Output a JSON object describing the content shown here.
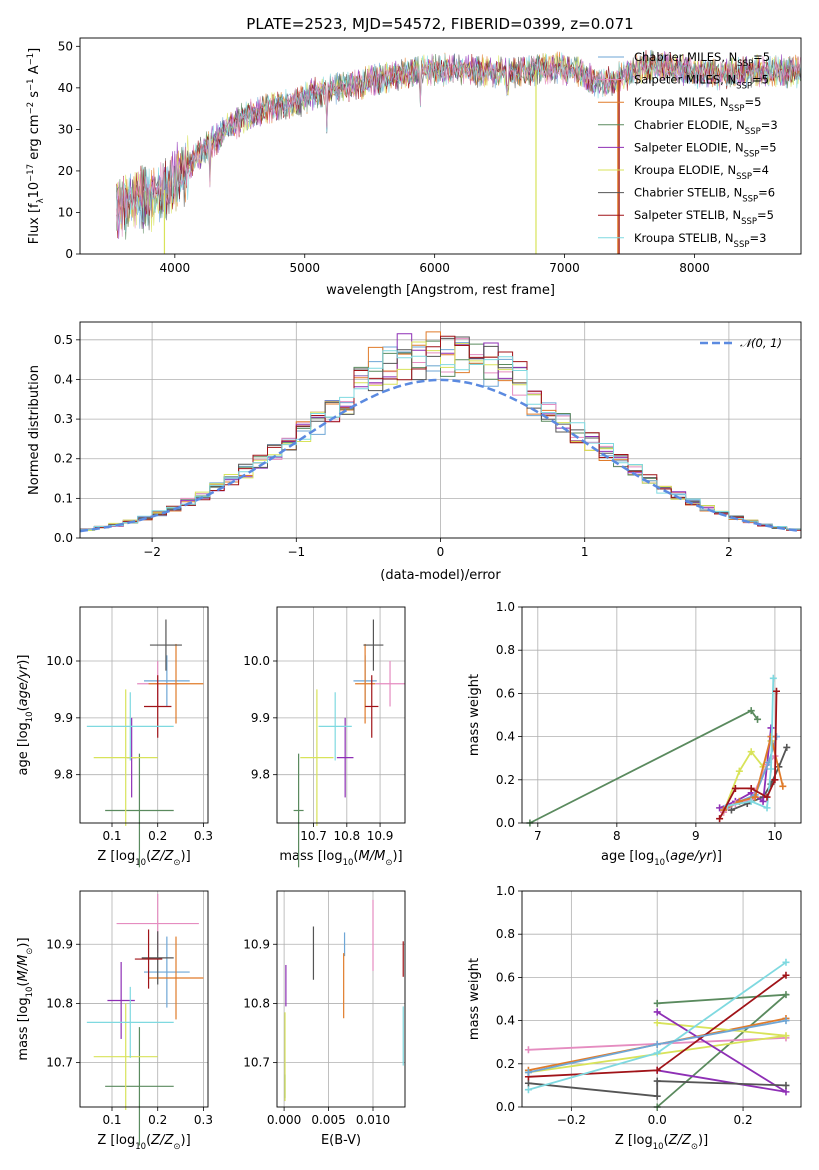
{
  "figure": {
    "title": "PLATE=2523, MJD=54572, FIBERID=0399, z=0.071"
  },
  "colors": {
    "Chabrier MILES": "#6ea6d6",
    "Salpeter MILES": "#e58cc0",
    "Kroupa MILES": "#e07b2a",
    "Chabrier ELODIE": "#5a8a5e",
    "Salpeter ELODIE": "#8e2fb5",
    "Kroupa ELODIE": "#d8e35a",
    "Chabrier STELIB": "#555555",
    "Salpeter STELIB": "#a01318",
    "Kroupa STELIB": "#7fd9e0",
    "normal_curve": "#5b8ae0"
  },
  "chart_data": [
    {
      "id": "spectrum",
      "type": "line",
      "xlabel": "wavelength [Angstrom, rest frame]",
      "ylabel": "Flux [fλ10⁻¹⁷ erg cm⁻² s⁻¹ A⁻¹]",
      "xlim": [
        3270,
        8820
      ],
      "ylim": [
        0,
        52
      ],
      "xticks": [
        "4000",
        "5000",
        "6000",
        "7000",
        "8000"
      ],
      "yticks": [
        "0",
        "10",
        "20",
        "30",
        "40",
        "50"
      ],
      "continuum": {
        "x": [
          3550,
          3700,
          3850,
          3950,
          4100,
          4250,
          4400,
          4550,
          4700,
          4900,
          5100,
          5300,
          5500,
          5700,
          5900,
          6100,
          6300,
          6500,
          6700,
          6900,
          7100,
          7200,
          7300,
          7400,
          7600,
          7800,
          8000,
          8200,
          8400,
          8600,
          8800
        ],
        "y": [
          11,
          13,
          14,
          16,
          21,
          26,
          30,
          33,
          35,
          36,
          39,
          40,
          41.5,
          43,
          44,
          44.5,
          44,
          44,
          44,
          45,
          44,
          42,
          41,
          42,
          45,
          45,
          44,
          43,
          44,
          44,
          44
        ]
      },
      "dips": [
        {
          "x": 3920,
          "y": 0,
          "series": "Kroupa ELODIE"
        },
        {
          "x": 4270,
          "y": 16
        },
        {
          "x": 5170,
          "y": 29
        },
        {
          "x": 5890,
          "y": 35
        },
        {
          "x": 6560,
          "y": 38
        },
        {
          "x": 6780,
          "y": 0,
          "series": "Kroupa ELODIE"
        },
        {
          "x": 7420,
          "y": 0,
          "series": "Salpeter STELIB"
        },
        {
          "x": 7410,
          "y": 0,
          "series": "Kroupa MILES"
        }
      ],
      "legend": [
        {
          "label": "Chabrier MILES, N",
          "sub": "SSP",
          "suffix": "=5"
        },
        {
          "label": "Salpeter MILES, N",
          "sub": "SSP",
          "suffix": "=5"
        },
        {
          "label": "Kroupa MILES, N",
          "sub": "SSP",
          "suffix": "=5"
        },
        {
          "label": "Chabrier ELODIE, N",
          "sub": "SSP",
          "suffix": "=3"
        },
        {
          "label": "Salpeter ELODIE, N",
          "sub": "SSP",
          "suffix": "=5"
        },
        {
          "label": "Kroupa ELODIE, N",
          "sub": "SSP",
          "suffix": "=4"
        },
        {
          "label": "Chabrier STELIB, N",
          "sub": "SSP",
          "suffix": "=6"
        },
        {
          "label": "Salpeter STELIB, N",
          "sub": "SSP",
          "suffix": "=5"
        },
        {
          "label": "Kroupa STELIB, N",
          "sub": "SSP",
          "suffix": "=3"
        }
      ],
      "legend_position": "upper-right"
    },
    {
      "id": "residuals",
      "type": "histogram",
      "xlabel": "(data-model)/error",
      "ylabel": "Normed distribution",
      "xlim": [
        -2.5,
        2.5
      ],
      "ylim": [
        0,
        0.545
      ],
      "xticks": [
        "−2",
        "−1",
        "0",
        "1",
        "2"
      ],
      "yticks": [
        "0.0",
        "0.1",
        "0.2",
        "0.3",
        "0.4",
        "0.5"
      ],
      "grid": true,
      "bin_width": 0.1,
      "normal_label": "𝒩(0, 1)",
      "legend_position": "upper-right"
    },
    {
      "id": "age_vs_Z",
      "type": "errorbar",
      "xlabel": "Z [log₁₀(Z/Z⊙)]",
      "ylabel": "age  [log₁₀(age/yr)]",
      "xlim": [
        0.03,
        0.31
      ],
      "ylim": [
        9.715,
        10.095
      ],
      "xticks": [
        {
          "v": 0.1,
          "t": "0.1"
        },
        {
          "v": 0.2,
          "t": "0.2"
        },
        {
          "v": 0.3,
          "t": "0.3"
        }
      ],
      "yticks": [
        {
          "v": 9.8,
          "t": "9.8"
        },
        {
          "v": 9.9,
          "t": "9.9"
        },
        {
          "v": 10.0,
          "t": "10.0"
        }
      ],
      "grid": true,
      "points": [
        {
          "series": "Chabrier MILES",
          "x": 0.22,
          "xerr": 0.05,
          "y": 9.965,
          "yerr": 0.045
        },
        {
          "series": "Salpeter MILES",
          "x": 0.2,
          "xerr": 0.045,
          "y": 9.96,
          "yerr": 0.04
        },
        {
          "series": "Kroupa MILES",
          "x": 0.24,
          "xerr": 0.06,
          "y": 9.96,
          "yerr": 0.07
        },
        {
          "series": "Chabrier ELODIE",
          "x": 0.16,
          "xerr": 0.075,
          "y": 9.737,
          "yerr": 0.1
        },
        {
          "series": "Salpeter ELODIE",
          "x": 0.143,
          "xerr": 0.01,
          "y": 9.83,
          "yerr": 0.07
        },
        {
          "series": "Kroupa ELODIE",
          "x": 0.13,
          "xerr": 0.07,
          "y": 9.83,
          "yerr": 0.12
        },
        {
          "series": "Chabrier STELIB",
          "x": 0.218,
          "xerr": 0.035,
          "y": 10.028,
          "yerr": 0.045
        },
        {
          "series": "Salpeter STELIB",
          "x": 0.2,
          "xerr": 0.03,
          "y": 9.92,
          "yerr": 0.055
        },
        {
          "series": "Kroupa STELIB",
          "x": 0.14,
          "xerr": 0.095,
          "y": 9.885,
          "yerr": 0.06
        }
      ]
    },
    {
      "id": "age_vs_mass",
      "type": "errorbar",
      "xlabel": "mass [log₁₀(M/M⊙)]",
      "ylabel": "",
      "xlim": [
        10.59,
        10.975
      ],
      "ylim": [
        9.715,
        10.095
      ],
      "xticks": [
        {
          "v": 10.7,
          "t": "10.7"
        },
        {
          "v": 10.8,
          "t": "10.8"
        },
        {
          "v": 10.9,
          "t": "10.9"
        }
      ],
      "yticks": [
        {
          "v": 9.8,
          "t": "9.8"
        },
        {
          "v": 9.9,
          "t": "9.9"
        },
        {
          "v": 10.0,
          "t": "10.0"
        }
      ],
      "grid": true,
      "points": [
        {
          "series": "Chabrier MILES",
          "x": 10.855,
          "xerr": 0.035,
          "y": 9.965,
          "yerr": 0.045
        },
        {
          "series": "Salpeter MILES",
          "x": 10.93,
          "xerr": 0.045,
          "y": 9.96,
          "yerr": 0.04
        },
        {
          "series": "Kroupa MILES",
          "x": 10.855,
          "xerr": 0.03,
          "y": 9.96,
          "yerr": 0.07
        },
        {
          "series": "Chabrier ELODIE",
          "x": 10.655,
          "xerr": 0.015,
          "y": 9.737,
          "yerr": 0.1
        },
        {
          "series": "Salpeter ELODIE",
          "x": 10.795,
          "xerr": 0.025,
          "y": 9.83,
          "yerr": 0.07
        },
        {
          "series": "Kroupa ELODIE",
          "x": 10.71,
          "xerr": 0.05,
          "y": 9.83,
          "yerr": 0.12
        },
        {
          "series": "Chabrier STELIB",
          "x": 10.88,
          "xerr": 0.03,
          "y": 10.028,
          "yerr": 0.045
        },
        {
          "series": "Salpeter STELIB",
          "x": 10.875,
          "xerr": 0.02,
          "y": 9.92,
          "yerr": 0.055
        },
        {
          "series": "Kroupa STELIB",
          "x": 10.765,
          "xerr": 0.05,
          "y": 9.885,
          "yerr": 0.06
        }
      ]
    },
    {
      "id": "weight_vs_age",
      "type": "line",
      "xlabel": "age  [log₁₀(age/yr)]",
      "ylabel": "mass weight",
      "xlim": [
        6.8,
        10.33
      ],
      "ylim": [
        0,
        1
      ],
      "xticks": [
        {
          "v": 7,
          "t": "7"
        },
        {
          "v": 8,
          "t": "8"
        },
        {
          "v": 9,
          "t": "9"
        },
        {
          "v": 10,
          "t": "10"
        }
      ],
      "yticks": [
        {
          "v": 0,
          "t": "0.0"
        },
        {
          "v": 0.2,
          "t": "0.2"
        },
        {
          "v": 0.4,
          "t": "0.4"
        },
        {
          "v": 0.6,
          "t": "0.6"
        },
        {
          "v": 0.8,
          "t": "0.8"
        },
        {
          "v": 1,
          "t": "1.0"
        }
      ],
      "grid": true,
      "series": [
        {
          "name": "Chabrier ELODIE",
          "x": [
            6.9,
            9.7,
            9.78
          ],
          "y": [
            0.0,
            0.52,
            0.48
          ]
        },
        {
          "name": "Chabrier STELIB",
          "x": [
            9.45,
            9.65,
            9.85,
            9.95,
            10.05,
            10.15
          ],
          "y": [
            0.06,
            0.09,
            0.12,
            0.18,
            0.26,
            0.35
          ]
        },
        {
          "name": "Kroupa ELODIE",
          "x": [
            9.35,
            9.55,
            9.7,
            9.85,
            9.95
          ],
          "y": [
            0.05,
            0.24,
            0.33,
            0.26,
            0.38
          ]
        },
        {
          "name": "Salpeter ELODIE",
          "x": [
            9.3,
            9.5,
            9.7,
            9.85,
            9.95
          ],
          "y": [
            0.07,
            0.1,
            0.14,
            0.1,
            0.44
          ]
        },
        {
          "name": "Salpeter MILES",
          "x": [
            9.35,
            9.5,
            9.7,
            9.9,
            10.0
          ],
          "y": [
            0.05,
            0.09,
            0.11,
            0.27,
            0.31
          ]
        },
        {
          "name": "Chabrier MILES",
          "x": [
            9.35,
            9.55,
            9.75,
            9.92,
            10.02
          ],
          "y": [
            0.06,
            0.1,
            0.13,
            0.28,
            0.4
          ]
        },
        {
          "name": "Kroupa MILES",
          "x": [
            9.35,
            9.55,
            9.75,
            9.95,
            10.1
          ],
          "y": [
            0.06,
            0.1,
            0.12,
            0.4,
            0.17
          ]
        },
        {
          "name": "Kroupa STELIB",
          "x": [
            9.4,
            9.7,
            9.9,
            9.95,
            9.98
          ],
          "y": [
            0.08,
            0.1,
            0.07,
            0.25,
            0.67
          ]
        },
        {
          "name": "Salpeter STELIB",
          "x": [
            9.3,
            9.5,
            9.7,
            9.9,
            10.0,
            10.02
          ],
          "y": [
            0.02,
            0.16,
            0.16,
            0.12,
            0.2,
            0.61
          ]
        }
      ]
    },
    {
      "id": "mass_vs_Z",
      "type": "errorbar",
      "xlabel": "Z [log₁₀(Z/Z⊙)]",
      "ylabel": "mass [log₁₀(M/M⊙)]",
      "xlim": [
        0.03,
        0.31
      ],
      "ylim": [
        10.625,
        10.99
      ],
      "xticks": [
        {
          "v": 0.1,
          "t": "0.1"
        },
        {
          "v": 0.2,
          "t": "0.2"
        },
        {
          "v": 0.3,
          "t": "0.3"
        }
      ],
      "yticks": [
        {
          "v": 10.7,
          "t": "10.7"
        },
        {
          "v": 10.8,
          "t": "10.8"
        },
        {
          "v": 10.9,
          "t": "10.9"
        }
      ],
      "grid": true,
      "points": [
        {
          "series": "Chabrier MILES",
          "x": 0.22,
          "xerr": 0.05,
          "y": 10.853,
          "yerr": 0.06
        },
        {
          "series": "Salpeter MILES",
          "x": 0.2,
          "xerr": 0.09,
          "y": 10.935,
          "yerr": 0.05
        },
        {
          "series": "Kroupa MILES",
          "x": 0.24,
          "xerr": 0.06,
          "y": 10.843,
          "yerr": 0.07
        },
        {
          "series": "Chabrier ELODIE",
          "x": 0.16,
          "xerr": 0.075,
          "y": 10.66,
          "yerr": 0.1
        },
        {
          "series": "Salpeter ELODIE",
          "x": 0.12,
          "xerr": 0.03,
          "y": 10.805,
          "yerr": 0.065
        },
        {
          "series": "Kroupa ELODIE",
          "x": 0.13,
          "xerr": 0.07,
          "y": 10.71,
          "yerr": 0.09
        },
        {
          "series": "Chabrier STELIB",
          "x": 0.2,
          "xerr": 0.035,
          "y": 10.877,
          "yerr": 0.045
        },
        {
          "series": "Salpeter STELIB",
          "x": 0.18,
          "xerr": 0.03,
          "y": 10.875,
          "yerr": 0.05
        },
        {
          "series": "Kroupa STELIB",
          "x": 0.14,
          "xerr": 0.095,
          "y": 10.768,
          "yerr": 0.06
        }
      ]
    },
    {
      "id": "mass_vs_ebv",
      "type": "errorbar",
      "xlabel": "E(B-V)",
      "ylabel": "",
      "xlim": [
        -0.0008,
        0.0136
      ],
      "ylim": [
        10.625,
        10.99
      ],
      "xticks": [
        {
          "v": 0.0,
          "t": "0.000"
        },
        {
          "v": 0.005,
          "t": "0.005"
        },
        {
          "v": 0.01,
          "t": "0.010"
        }
      ],
      "yticks": [
        {
          "v": 10.7,
          "t": "10.7"
        },
        {
          "v": 10.8,
          "t": "10.8"
        },
        {
          "v": 10.9,
          "t": "10.9"
        }
      ],
      "grid": true,
      "points": [
        {
          "series": "Chabrier MILES",
          "x": 0.0068,
          "xerr": 0,
          "y": 10.9,
          "yerr": 0.02
        },
        {
          "series": "Salpeter MILES",
          "x": 0.01,
          "xerr": 0,
          "y": 10.915,
          "yerr": 0.06
        },
        {
          "series": "Kroupa MILES",
          "x": 0.0067,
          "xerr": 0,
          "y": 10.83,
          "yerr": 0.055
        },
        {
          "series": "Chabrier ELODIE",
          "x": 0.0001,
          "xerr": 0,
          "y": 10.66,
          "yerr": 0.02
        },
        {
          "series": "Salpeter ELODIE",
          "x": 0.0002,
          "xerr": 0,
          "y": 10.83,
          "yerr": 0.035
        },
        {
          "series": "Kroupa ELODIE",
          "x": 0.0001,
          "xerr": 0,
          "y": 10.71,
          "yerr": 0.075
        },
        {
          "series": "Chabrier STELIB",
          "x": 0.0033,
          "xerr": 0,
          "y": 10.885,
          "yerr": 0.045
        },
        {
          "series": "Salpeter STELIB",
          "x": 0.0134,
          "xerr": 0,
          "y": 10.875,
          "yerr": 0.03
        },
        {
          "series": "Kroupa STELIB",
          "x": 0.0134,
          "xerr": 0,
          "y": 10.745,
          "yerr": 0.05
        }
      ]
    },
    {
      "id": "weight_vs_Z",
      "type": "line",
      "xlabel": "Z [log₁₀(Z/Z⊙)]",
      "ylabel": "mass weight",
      "xlim": [
        -0.315,
        0.335
      ],
      "ylim": [
        0,
        1
      ],
      "xticks": [
        {
          "v": -0.2,
          "t": "−0.2"
        },
        {
          "v": 0.0,
          "t": "0.0"
        },
        {
          "v": 0.2,
          "t": "0.2"
        }
      ],
      "yticks": [
        {
          "v": 0,
          "t": "0.0"
        },
        {
          "v": 0.2,
          "t": "0.2"
        },
        {
          "v": 0.4,
          "t": "0.4"
        },
        {
          "v": 0.6,
          "t": "0.6"
        },
        {
          "v": 0.8,
          "t": "0.8"
        },
        {
          "v": 1,
          "t": "1.0"
        }
      ],
      "grid": true,
      "series": [
        {
          "name": "Chabrier ELODIE",
          "x": [
            0.0,
            0.3,
            0.0
          ],
          "y": [
            0.0,
            0.52,
            0.48
          ]
        },
        {
          "name": "Salpeter MILES",
          "x": [
            -0.3,
            0.3
          ],
          "y": [
            0.265,
            0.32
          ]
        },
        {
          "name": "Kroupa MILES",
          "x": [
            -0.3,
            0.0,
            0.3
          ],
          "y": [
            0.17,
            0.29,
            0.41
          ]
        },
        {
          "name": "Kroupa ELODIE",
          "x": [
            0.0,
            0.3,
            -0.3
          ],
          "y": [
            0.39,
            0.33,
            0.16
          ]
        },
        {
          "name": "Salpeter ELODIE",
          "x": [
            0.0,
            0.3,
            0.0
          ],
          "y": [
            0.17,
            0.07,
            0.44
          ]
        },
        {
          "name": "Chabrier STELIB",
          "x": [
            -0.3,
            0.0,
            0.0,
            0.3
          ],
          "y": [
            0.11,
            0.05,
            0.12,
            0.1
          ]
        },
        {
          "name": "Salpeter STELIB",
          "x": [
            -0.3,
            0.0,
            0.3
          ],
          "y": [
            0.14,
            0.17,
            0.61
          ]
        },
        {
          "name": "Kroupa STELIB",
          "x": [
            -0.3,
            0.0,
            0.3
          ],
          "y": [
            0.08,
            0.25,
            0.67
          ]
        },
        {
          "name": "Chabrier MILES",
          "x": [
            -0.3,
            0.0,
            0.3
          ],
          "y": [
            0.16,
            0.29,
            0.4
          ]
        }
      ]
    }
  ]
}
